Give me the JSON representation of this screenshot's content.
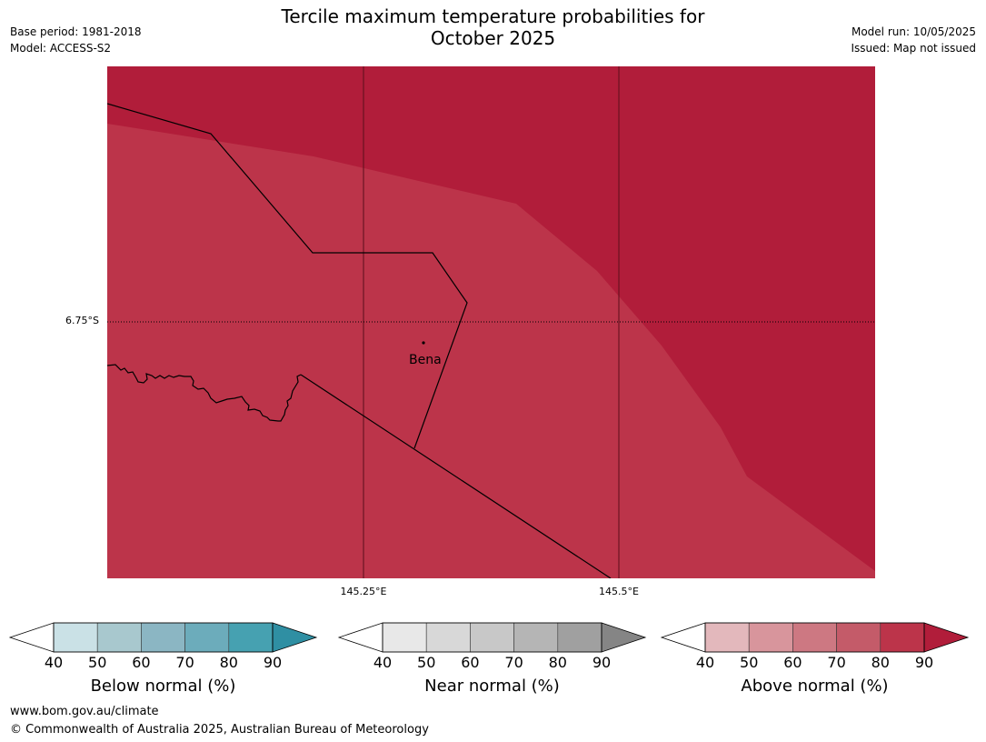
{
  "title_line1": "Tercile maximum temperature probabilities for",
  "title_line2": "October 2025",
  "meta_left": {
    "base_period": "Base period: 1981-2018",
    "model": "Model: ACCESS-S2"
  },
  "meta_right": {
    "model_run": "Model run: 10/05/2025",
    "issued": "Issued: Map not issued"
  },
  "map": {
    "lat_label": "6.75°S",
    "lon_labels": [
      "145.25°E",
      "145.5°E"
    ],
    "place": "Bena",
    "colors": {
      "above_70_80": "#bc344a",
      "above_80_90": "#b11d3a",
      "boundary": "#000000"
    }
  },
  "legends": [
    {
      "label": "Below normal (%)",
      "ticks": [
        "40",
        "50",
        "60",
        "70",
        "80",
        "90"
      ],
      "colors": [
        "#ffffff",
        "#cae1e6",
        "#a8c8ce",
        "#8bb6c3",
        "#6cacbb",
        "#46a1b1",
        "#2f8fa3"
      ]
    },
    {
      "label": "Near normal (%)",
      "ticks": [
        "40",
        "50",
        "60",
        "70",
        "80",
        "90"
      ],
      "colors": [
        "#ffffff",
        "#e8e8e8",
        "#d8d8d8",
        "#c8c8c8",
        "#b5b5b5",
        "#a0a0a0",
        "#858585"
      ]
    },
    {
      "label": "Above normal (%)",
      "ticks": [
        "40",
        "50",
        "60",
        "70",
        "80",
        "90"
      ],
      "colors": [
        "#ffffff",
        "#e3b8bc",
        "#d8959c",
        "#cd7882",
        "#c45b69",
        "#bc344a",
        "#b11d3a"
      ]
    }
  ],
  "footer": {
    "url": "www.bom.gov.au/climate",
    "copyright": "© Commonwealth of Australia 2025, Australian Bureau of Meteorology"
  }
}
